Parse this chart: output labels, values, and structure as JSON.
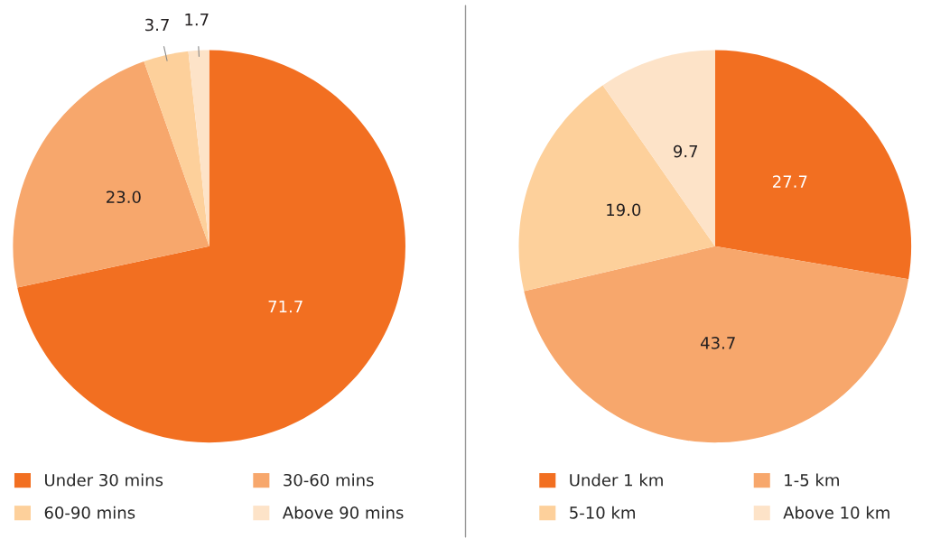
{
  "chart_data": [
    {
      "type": "pie",
      "categories": [
        "Under 30 mins",
        "30-60 mins",
        "60-90 mins",
        "Above 90 mins"
      ],
      "values": [
        71.7,
        23.0,
        3.7,
        1.7
      ],
      "value_labels": [
        "71.7",
        "23.0",
        "3.7",
        "1.7"
      ],
      "colors": [
        "#f26f21",
        "#f7a76c",
        "#fdd09b",
        "#fde3c8"
      ],
      "legend": "bottom"
    },
    {
      "type": "pie",
      "categories": [
        "Under 1 km",
        "1-5 km",
        "5-10 km",
        "Above 10 km"
      ],
      "values": [
        27.7,
        43.7,
        19.0,
        9.7
      ],
      "value_labels": [
        "27.7",
        "43.7",
        "19.0",
        "9.7"
      ],
      "colors": [
        "#f26f21",
        "#f7a76c",
        "#fdd09b",
        "#fde3c8"
      ],
      "legend": "bottom"
    }
  ]
}
